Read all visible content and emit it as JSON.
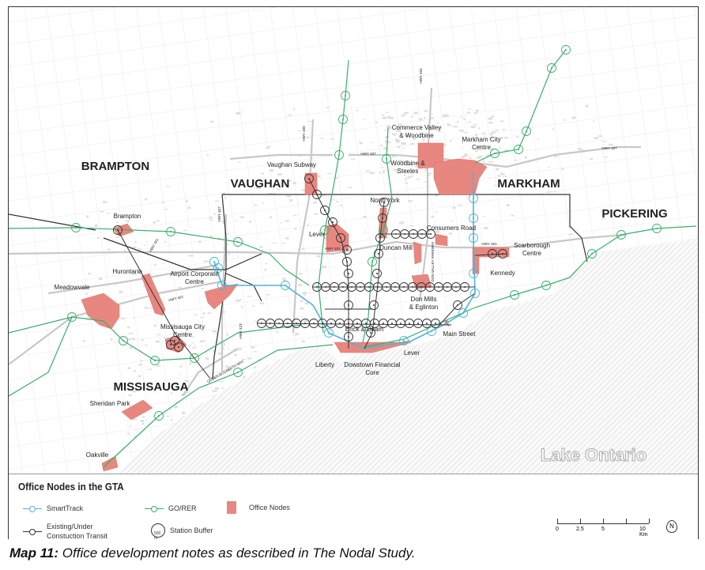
{
  "map": {
    "lake_label": "Lake Ontario",
    "cities": [
      "BRAMPTON",
      "VAUGHAN",
      "MARKHAM",
      "PICKERING",
      "MISSISAUGA"
    ],
    "nodes": [
      "Brampton",
      "Hurontario",
      "Meadowvale",
      "Airport Corporate Centre",
      "Missisauga City Centre",
      "Sheridan Park",
      "Oakville",
      "Vaughan Subway",
      "Lever",
      "North York",
      "Commerce Valley & Woodbine",
      "Markham City Centre",
      "Woodbine & Steeles",
      "Consumers Road",
      "Duncan Mill",
      "Scarborough Centre",
      "Kennedy",
      "Don Mills & Eglinton",
      "Main Street",
      "Brick & Beam",
      "Liberty",
      "Dowstown Financial Core",
      "Lever"
    ],
    "highways": [
      "HWY 400",
      "HWY 404",
      "HWY 407",
      "HWY 407",
      "HWY 401",
      "HWY 401",
      "HWY 401",
      "HWY 401",
      "HWY 427",
      "HWY 427",
      "QUEEN ELIZABETH WAY",
      "DON VALLEY PARKWAY"
    ],
    "colors": {
      "office_node": "#e8877f",
      "go_rer": "#3aae6e",
      "smarttrack": "#4fb3d9",
      "transit": "#333333",
      "lake_hatch": "#cfcfcf"
    }
  },
  "legend": {
    "title": "Office Nodes in the GTA",
    "smarttrack": "SmartTrack",
    "go_rer": "GO/RER",
    "office_nodes": "Office Nodes",
    "transit": "Existing/Under Constuction Transit",
    "station_buffer": "Station Buffer",
    "buffer_radius": "500 m",
    "scale_ticks": [
      "0",
      "2.5",
      "5",
      "10 Km"
    ],
    "north_icon": "north-arrow-icon"
  },
  "caption": {
    "label": "Map 11:",
    "text": " Office development notes as described in The Nodal Study."
  }
}
